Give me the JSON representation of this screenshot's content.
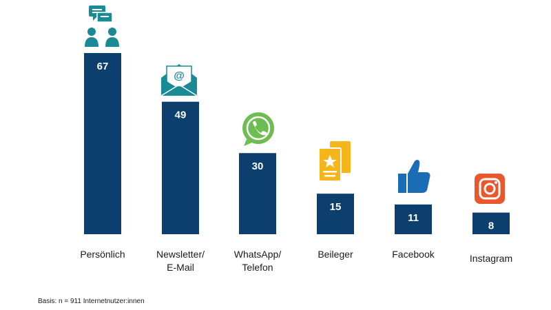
{
  "chart_data": {
    "type": "bar",
    "categories": [
      [
        "Persönlich"
      ],
      [
        "Newsletter/",
        "E-Mail"
      ],
      [
        "WhatsApp/",
        "Telefon"
      ],
      [
        "Beileger"
      ],
      [
        "Facebook"
      ],
      [
        "Instagram"
      ]
    ],
    "values": [
      67,
      49,
      30,
      15,
      11,
      8
    ],
    "icons": [
      "chat-people-icon",
      "email-icon",
      "whatsapp-icon",
      "flyer-icon",
      "thumbs-up-icon",
      "instagram-icon"
    ],
    "ylim": [
      0,
      67
    ],
    "grid": false,
    "legend": "none",
    "bar_color": "#0d3f6e"
  },
  "footnote": "Basis: n = 911 Internetnutzer:innen"
}
